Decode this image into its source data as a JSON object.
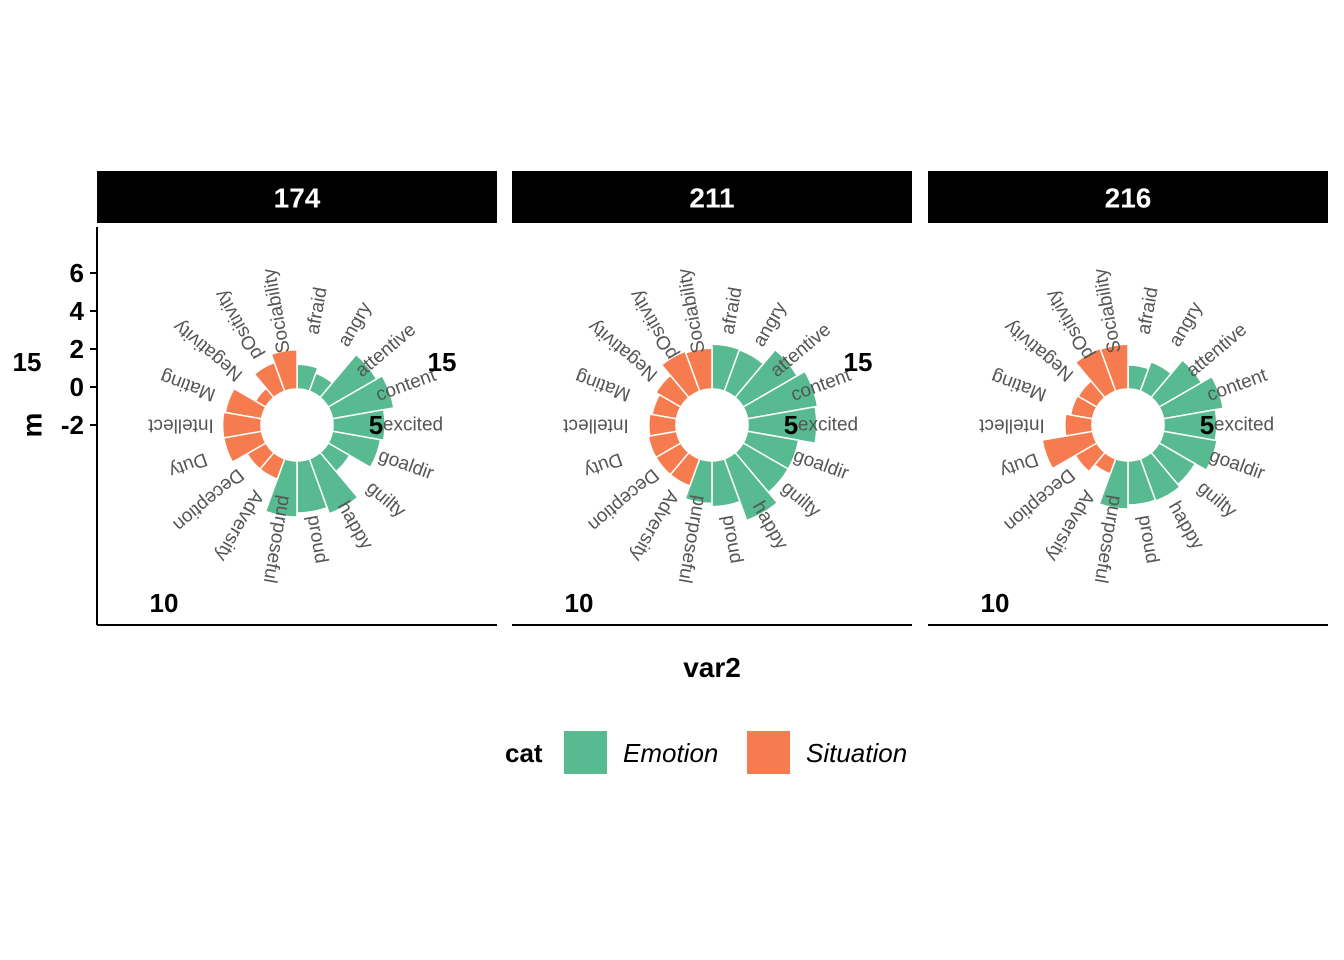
{
  "chart_data": {
    "type": "bar",
    "coord": "polar",
    "xlabel": "var2",
    "ylabel": "m",
    "y_ticks": [
      "6",
      "4",
      "2",
      "0",
      "-2"
    ],
    "angular_ticks": [
      "5",
      "10",
      "15"
    ],
    "legend": {
      "title": "cat",
      "position": "bottom",
      "entries": [
        {
          "name": "Emotion",
          "color": "#57BA91"
        },
        {
          "name": "Situation",
          "color": "#F67C4F"
        }
      ]
    },
    "categories": [
      "afraid",
      "angry",
      "attentive",
      "content",
      "excited",
      "goaldir",
      "guilty",
      "happy",
      "proud",
      "purposeful",
      "Adversity",
      "Deception",
      "Duty",
      "Intellect",
      "Mating",
      "Negativity",
      "pOsitivity",
      "Sociability"
    ],
    "category_group": [
      "Emotion",
      "Emotion",
      "Emotion",
      "Emotion",
      "Emotion",
      "Emotion",
      "Emotion",
      "Emotion",
      "Emotion",
      "Emotion",
      "Situation",
      "Situation",
      "Situation",
      "Situation",
      "Situation",
      "Situation",
      "Situation",
      "Situation"
    ],
    "panels": [
      {
        "title": "174",
        "values": [
          -0.9,
          -1.6,
          3.0,
          3.8,
          2.5,
          2.1,
          -0.9,
          3.3,
          2.5,
          3.0,
          -1.3,
          -1.3,
          0.8,
          0.8,
          0.6,
          -2.5,
          -0.2,
          0.9
        ]
      },
      {
        "title": "211",
        "values": [
          1.6,
          1.5,
          3.8,
          4.9,
          4.6,
          2.5,
          2.5,
          4.2,
          1.7,
          1.3,
          -0.4,
          -0.4,
          -0.4,
          -0.6,
          -0.9,
          -0.4,
          1.3,
          1.1
        ]
      },
      {
        "title": "216",
        "values": [
          -1.0,
          -0.1,
          2.1,
          3.6,
          2.6,
          2.8,
          1.2,
          1.6,
          1.5,
          2.0,
          -2.0,
          -0.9,
          2.4,
          -0.6,
          -1.2,
          -1.3,
          1.7,
          1.6
        ]
      }
    ]
  }
}
